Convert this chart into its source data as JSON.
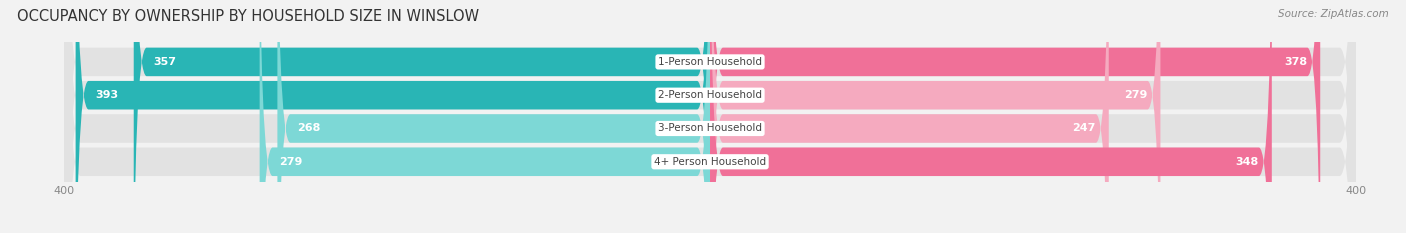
{
  "title": "OCCUPANCY BY OWNERSHIP BY HOUSEHOLD SIZE IN WINSLOW",
  "source": "Source: ZipAtlas.com",
  "categories": [
    "1-Person Household",
    "2-Person Household",
    "3-Person Household",
    "4+ Person Household"
  ],
  "owner_values": [
    357,
    393,
    268,
    279
  ],
  "renter_values": [
    378,
    279,
    247,
    348
  ],
  "owner_colors": [
    "#29b5b5",
    "#29b5b5",
    "#7dd8d6",
    "#7dd8d6"
  ],
  "renter_colors": [
    "#f07098",
    "#f5aabf",
    "#f5aabf",
    "#f07098"
  ],
  "bg_color": "#f2f2f2",
  "bar_bg_color": "#e2e2e2",
  "legend_owner_color": "#29b5b5",
  "legend_renter_color": "#f07098",
  "axis_max": 400,
  "title_fontsize": 10.5,
  "source_fontsize": 7.5,
  "bar_label_fontsize": 8,
  "category_fontsize": 7.5,
  "legend_fontsize": 8,
  "xlabel_fontsize": 8
}
